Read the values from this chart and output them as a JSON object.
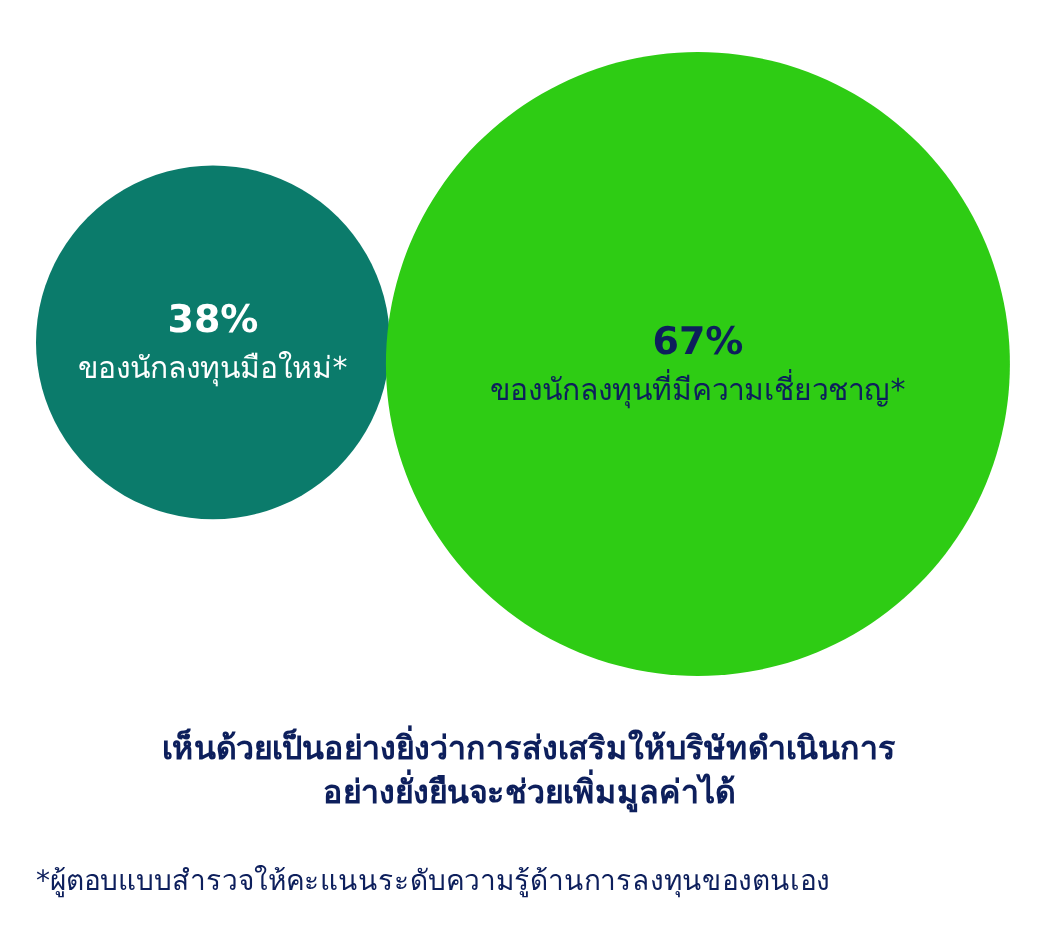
{
  "chart_data": {
    "type": "other",
    "title": "เห็นด้วยเป็นอย่างยิ่งว่าการส่งเสริมให้บริษัทดำเนินการ\nอย่างยั่งยืนจะช่วยเพิ่มมูลค่าได้",
    "categories": [
      "ของนักลงทุนมือใหม่*",
      "ของนักลงทุนที่มีความเชี่ยวชาญ*"
    ],
    "values": [
      38,
      67
    ],
    "value_labels": [
      "38%",
      "67%"
    ],
    "colors": [
      "#0b7b6b",
      "#2ecc14"
    ],
    "annotations": [
      "*ผู้ตอบแบบสำรวจให้คะแนนระดับความรู้ด้านการลงทุนของตนเอง"
    ]
  }
}
